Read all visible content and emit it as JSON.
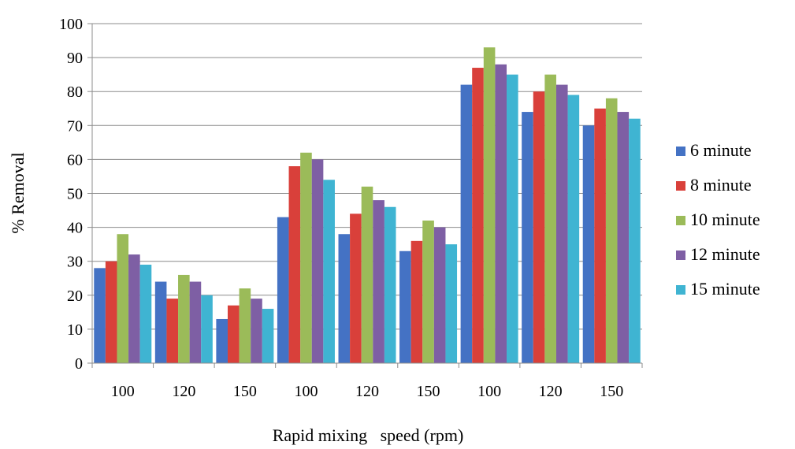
{
  "chart_data": {
    "type": "bar",
    "title": "",
    "xlabel": "Rapid mixing   speed (rpm)",
    "ylabel": "% Removal",
    "ylim": [
      0,
      100
    ],
    "yticks": [
      0,
      10,
      20,
      30,
      40,
      50,
      60,
      70,
      80,
      90,
      100
    ],
    "grid": true,
    "legend_position": "right",
    "categories": [
      "100",
      "120",
      "150",
      "100",
      "120",
      "150",
      "100",
      "120",
      "150"
    ],
    "series": [
      {
        "name": "6 minute",
        "color": "#4472C4",
        "values": [
          28,
          24,
          13,
          43,
          38,
          33,
          82,
          74,
          70
        ]
      },
      {
        "name": "8 minute",
        "color": "#D9403A",
        "values": [
          30,
          19,
          17,
          58,
          44,
          36,
          87,
          80,
          75
        ]
      },
      {
        "name": "10 minute",
        "color": "#9BBB59",
        "values": [
          38,
          26,
          22,
          62,
          52,
          42,
          93,
          85,
          78
        ]
      },
      {
        "name": "12 minute",
        "color": "#7E5FA4",
        "values": [
          32,
          24,
          19,
          60,
          48,
          40,
          88,
          82,
          74
        ]
      },
      {
        "name": "15 minute",
        "color": "#3FB4D2",
        "values": [
          29,
          20,
          16,
          54,
          46,
          35,
          85,
          79,
          72
        ]
      }
    ]
  }
}
